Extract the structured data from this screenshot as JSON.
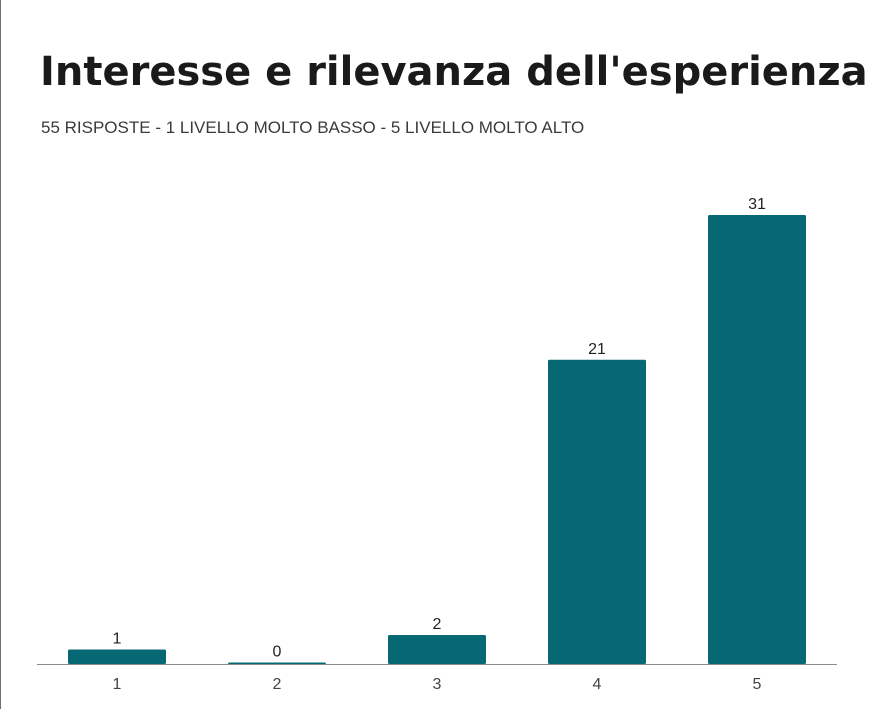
{
  "chart_data": {
    "type": "bar",
    "title": "Interesse e rilevanza dell'esperienza",
    "subtitle": "55 RISPOSTE - 1 LIVELLO MOLTO BASSO - 5 LIVELLO MOLTO ALTO",
    "categories": [
      "1",
      "2",
      "3",
      "4",
      "5"
    ],
    "values": [
      1,
      0,
      2,
      21,
      31
    ],
    "value_labels": [
      "1",
      "0",
      "2",
      "21",
      "31"
    ],
    "xlabel": "",
    "ylabel": "",
    "ylim": [
      0,
      31
    ],
    "grid": false,
    "legend": "none",
    "bar_color": "#066872",
    "axis_color": "#8c8c8c"
  }
}
